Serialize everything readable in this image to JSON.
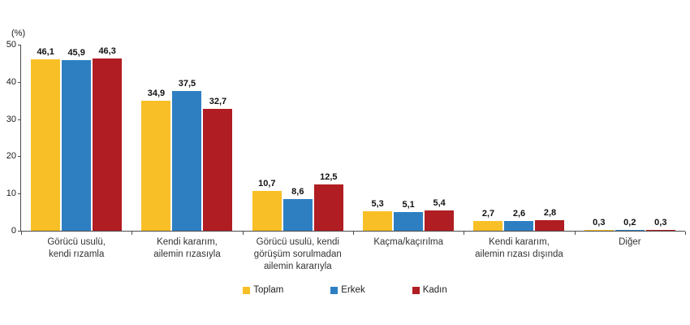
{
  "chart_data": {
    "type": "bar",
    "title": "",
    "ylabel": "(%)",
    "xlabel": "",
    "ylim": [
      0,
      50
    ],
    "yticks": [
      0,
      10,
      20,
      30,
      40,
      50
    ],
    "grid": false,
    "legend_position": "bottom",
    "decimal_separator": ",",
    "categories": [
      "Görücü usulü, kendi rızamla",
      "Kendi kararım, ailemin rızasıyla",
      "Görücü usulü, kendi görüşüm sorulmadan ailemin kararıyla",
      "Kaçma/kaçırılma",
      "Kendi kararım, ailemin rızası dışında",
      "Diğer"
    ],
    "category_lines": [
      [
        "Görücü usulü,",
        "kendi rızamla"
      ],
      [
        "Kendi kararım,",
        "ailemin rızasıyla"
      ],
      [
        "Görücü usulü, kendi",
        "görüşüm sorulmadan",
        "ailemin kararıyla"
      ],
      [
        "Kaçma/kaçırılma"
      ],
      [
        "Kendi kararım,",
        "ailemin rızası dışında"
      ],
      [
        "Diğer"
      ]
    ],
    "series": [
      {
        "name": "Toplam",
        "color": "#F8BF27",
        "values": [
          46.1,
          34.9,
          10.7,
          5.3,
          2.7,
          0.3
        ]
      },
      {
        "name": "Erkek",
        "color": "#2E7FC2",
        "values": [
          45.9,
          37.5,
          8.6,
          5.1,
          2.6,
          0.2
        ]
      },
      {
        "name": "Kadın",
        "color": "#B01D22",
        "values": [
          46.3,
          32.7,
          12.5,
          5.4,
          2.8,
          0.3
        ]
      }
    ],
    "colors": {
      "toplam": "#F8BF27",
      "erkek": "#2E7FC2",
      "kadin": "#B01D22",
      "axis": "#4d4d4d"
    }
  }
}
